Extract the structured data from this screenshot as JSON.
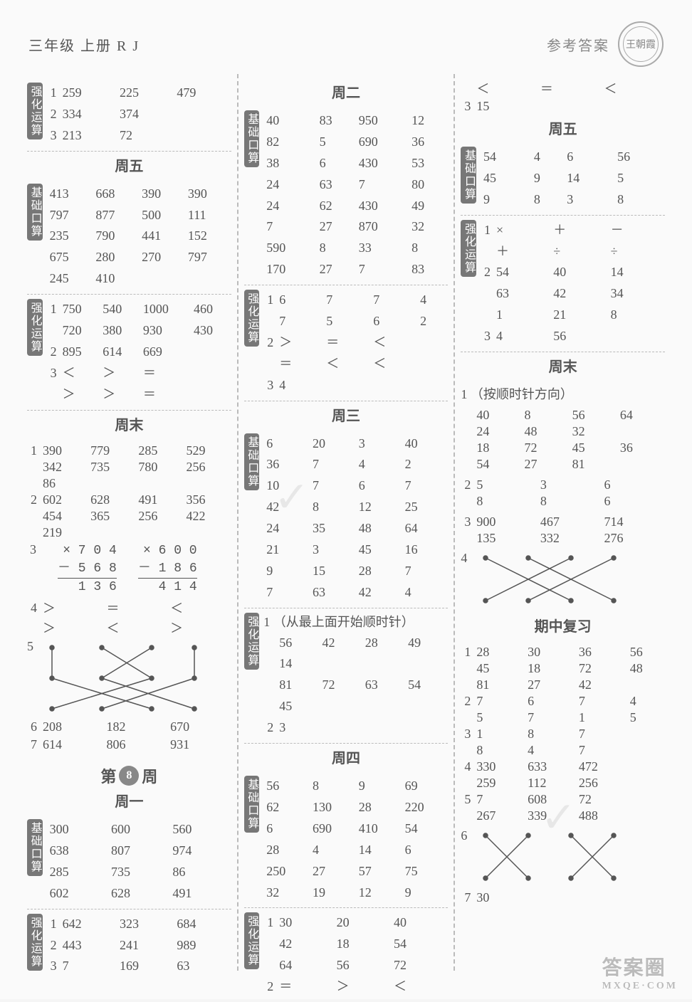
{
  "header": {
    "left": "三年级 上册 R J",
    "right": "参考答案",
    "seal": "王朝霞"
  },
  "col1": {
    "qh1": {
      "label": "强化运算",
      "rows": [
        [
          "1",
          "259",
          "225",
          "479"
        ],
        [
          "2",
          "334",
          "374",
          ""
        ],
        [
          "3",
          "213",
          "72",
          ""
        ]
      ]
    },
    "title_fri": "周五",
    "jc_fri": {
      "label": "基础口算",
      "rows": [
        [
          "413",
          "668",
          "390",
          "390"
        ],
        [
          "797",
          "877",
          "500",
          "111"
        ],
        [
          "235",
          "790",
          "441",
          "152"
        ],
        [
          "675",
          "280",
          "270",
          "797"
        ],
        [
          "245",
          "410",
          "",
          ""
        ]
      ]
    },
    "qh_fri": {
      "label": "强化运算",
      "rows": [
        [
          "1",
          "750",
          "540",
          "1000",
          "460"
        ],
        [
          "",
          "720",
          "380",
          "930",
          "430"
        ],
        [
          "2",
          "895",
          "614",
          "669",
          ""
        ],
        [
          "3",
          "＜",
          "＞",
          "＝",
          ""
        ],
        [
          "",
          "＞",
          "＞",
          "＝",
          ""
        ]
      ]
    },
    "title_weekend": "周末",
    "weekend": {
      "rows1": [
        [
          "1",
          "390",
          "779",
          "285",
          "529"
        ],
        [
          "",
          "342",
          "735",
          "780",
          "256"
        ],
        [
          "",
          "86",
          "",
          "",
          ""
        ],
        [
          "2",
          "602",
          "628",
          "491",
          "356"
        ],
        [
          "",
          "454",
          "365",
          "256",
          "422"
        ],
        [
          "",
          "219",
          "",
          "",
          ""
        ]
      ],
      "calc3_label": "3",
      "calc3a_top": "×      7 0 4",
      "calc3a_mid": "－ 5 6 8",
      "calc3a_res": "1 3 6",
      "calc3b_top": "×      6 0 0",
      "calc3b_mid": "－ 1 8 6",
      "calc3b_res": "4 1 4",
      "rows4": [
        [
          "4",
          "＞",
          "＝",
          "＜"
        ],
        [
          "",
          "＞",
          "＜",
          "＞"
        ]
      ],
      "row5_label": "5",
      "rows6": [
        [
          "6",
          "208",
          "182",
          "670"
        ]
      ],
      "rows7": [
        [
          "7",
          "614",
          "806",
          "931"
        ]
      ]
    },
    "week8_title_pre": "第",
    "week8_badge": "8",
    "week8_title_post": "周",
    "title_mon": "周一",
    "jc_mon": {
      "label": "基础口算",
      "rows": [
        [
          "300",
          "600",
          "560"
        ],
        [
          "638",
          "807",
          "974"
        ],
        [
          "285",
          "735",
          "86"
        ],
        [
          "602",
          "628",
          "491"
        ]
      ]
    },
    "qh_mon": {
      "label": "强化运算",
      "rows": [
        [
          "1",
          "642",
          "323",
          "684"
        ],
        [
          "2",
          "443",
          "241",
          "989"
        ],
        [
          "3",
          "7",
          "169",
          "63"
        ]
      ]
    }
  },
  "col2": {
    "title_tue": "周二",
    "jc_tue": {
      "label": "基础口算",
      "rows": [
        [
          "40",
          "83",
          "950",
          "12"
        ],
        [
          "82",
          "5",
          "690",
          "36"
        ],
        [
          "38",
          "6",
          "430",
          "53"
        ],
        [
          "24",
          "63",
          "7",
          "80"
        ],
        [
          "24",
          "62",
          "430",
          "49"
        ],
        [
          "7",
          "27",
          "870",
          "32"
        ],
        [
          "590",
          "8",
          "33",
          "8"
        ],
        [
          "170",
          "27",
          "7",
          "83"
        ]
      ]
    },
    "qh_tue": {
      "label": "强化运算",
      "rows": [
        [
          "1",
          "6",
          "7",
          "7",
          "4"
        ],
        [
          "",
          "7",
          "5",
          "6",
          "2"
        ],
        [
          "2",
          "＞",
          "＝",
          "＜",
          ""
        ],
        [
          "",
          "＝",
          "＜",
          "＜",
          ""
        ],
        [
          "3",
          "4",
          "",
          "",
          ""
        ]
      ]
    },
    "title_wed": "周三",
    "jc_wed": {
      "label": "基础口算",
      "rows": [
        [
          "6",
          "20",
          "3",
          "40"
        ],
        [
          "36",
          "7",
          "4",
          "2"
        ],
        [
          "10",
          "7",
          "6",
          "7"
        ],
        [
          "42",
          "8",
          "12",
          "25"
        ],
        [
          "24",
          "35",
          "48",
          "64"
        ],
        [
          "21",
          "3",
          "45",
          "16"
        ],
        [
          "9",
          "15",
          "28",
          "7"
        ],
        [
          "7",
          "63",
          "42",
          "4"
        ]
      ]
    },
    "qh_wed": {
      "label": "强化运算",
      "note": "1 （从最上面开始顺时针）",
      "rows1": [
        [
          "",
          "56",
          "42",
          "28",
          "49"
        ],
        [
          "",
          "14",
          "",
          "",
          ""
        ],
        [
          "",
          "81",
          "72",
          "63",
          "54"
        ],
        [
          "",
          "45",
          "",
          "",
          ""
        ]
      ],
      "row2": [
        "2",
        "3"
      ]
    },
    "title_thu": "周四",
    "jc_thu": {
      "label": "基础口算",
      "rows": [
        [
          "56",
          "8",
          "9",
          "69"
        ],
        [
          "62",
          "130",
          "28",
          "220"
        ],
        [
          "6",
          "690",
          "410",
          "54"
        ],
        [
          "28",
          "4",
          "14",
          "6"
        ],
        [
          "250",
          "27",
          "57",
          "75"
        ],
        [
          "32",
          "19",
          "12",
          "9"
        ]
      ]
    },
    "qh_thu": {
      "label": "强化运算",
      "rows": [
        [
          "1",
          "30",
          "20",
          "40"
        ],
        [
          "",
          "42",
          "18",
          "54"
        ],
        [
          "",
          "64",
          "56",
          "72"
        ],
        [
          "2",
          "＝",
          "＞",
          "＜"
        ]
      ]
    }
  },
  "col3": {
    "toprow": [
      "",
      "＜",
      "＝",
      "＜"
    ],
    "toprow2": [
      "3",
      "15",
      "",
      ""
    ],
    "title_fri": "周五",
    "jc_fri": {
      "label": "基础口算",
      "rows": [
        [
          "54",
          "4",
          "6",
          "56"
        ],
        [
          "45",
          "9",
          "14",
          "5"
        ],
        [
          "9",
          "8",
          "3",
          "8"
        ]
      ]
    },
    "qh_fri": {
      "label": "强化运算",
      "rows": [
        [
          "1",
          "×",
          "＋",
          "－"
        ],
        [
          "",
          "＋",
          "÷",
          "÷"
        ],
        [
          "2",
          "54",
          "40",
          "14"
        ],
        [
          "",
          "63",
          "42",
          "34"
        ],
        [
          "",
          "1",
          "21",
          "8"
        ],
        [
          "3",
          "4",
          "56",
          ""
        ]
      ]
    },
    "title_weekend": "周末",
    "weekend": {
      "note": "1 （按顺时针方向）",
      "rows1": [
        [
          "",
          "40",
          "8",
          "56",
          "64"
        ],
        [
          "",
          "24",
          "48",
          "32",
          ""
        ],
        [
          "",
          "18",
          "72",
          "45",
          "36"
        ],
        [
          "",
          "54",
          "27",
          "81",
          ""
        ]
      ],
      "rows2": [
        [
          "2",
          "5",
          "3",
          "6"
        ],
        [
          "",
          "8",
          "8",
          "6"
        ]
      ],
      "rows3": [
        [
          "3",
          "900",
          "467",
          "714"
        ],
        [
          "",
          "135",
          "332",
          "276"
        ]
      ],
      "row4_label": "4"
    },
    "title_mid": "期中复习",
    "mid": {
      "rows": [
        [
          "1",
          "28",
          "30",
          "36",
          "56"
        ],
        [
          "",
          "45",
          "18",
          "72",
          "48"
        ],
        [
          "",
          "81",
          "27",
          "42",
          ""
        ],
        [
          "2",
          "7",
          "6",
          "7",
          "4"
        ],
        [
          "",
          "5",
          "7",
          "1",
          "5"
        ],
        [
          "3",
          "1",
          "8",
          "7",
          ""
        ],
        [
          "",
          "8",
          "4",
          "7",
          ""
        ],
        [
          "4",
          "330",
          "633",
          "472",
          ""
        ],
        [
          "",
          "259",
          "112",
          "256",
          ""
        ],
        [
          "5",
          "7",
          "608",
          "72",
          ""
        ],
        [
          "",
          "267",
          "339",
          "488",
          ""
        ]
      ],
      "row6_label": "6",
      "row7": [
        "7",
        "30"
      ]
    }
  },
  "footer": {
    "brand": "答案圈",
    "url": "MXQE·COM"
  }
}
